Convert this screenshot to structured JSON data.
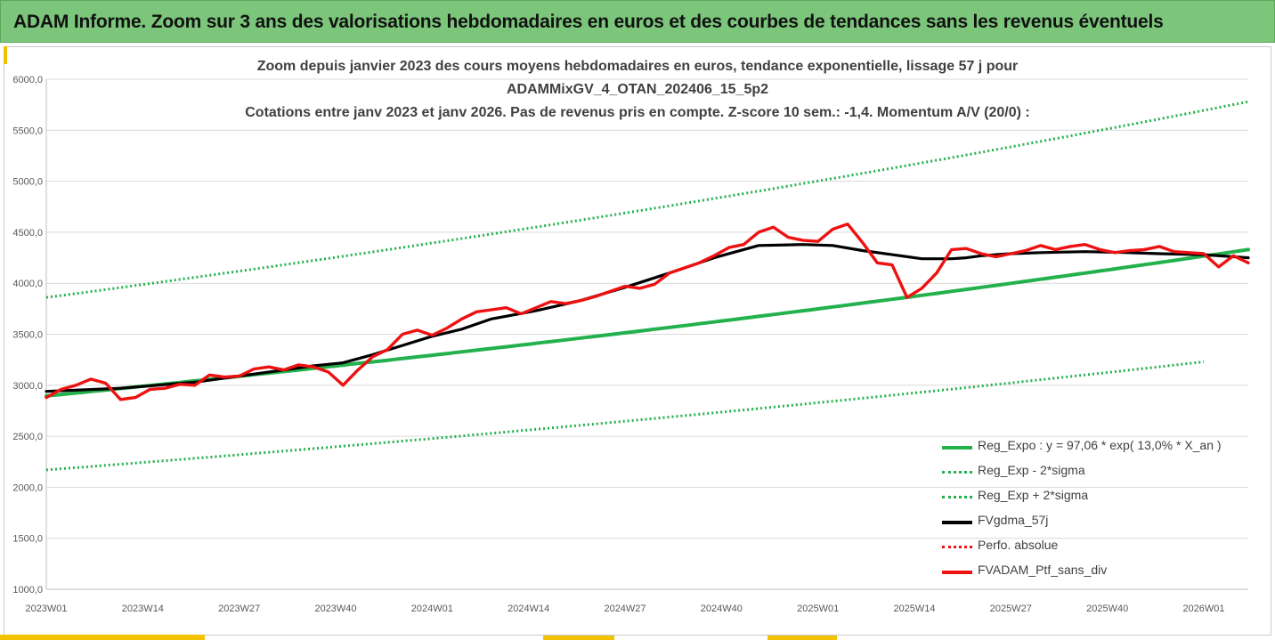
{
  "banner": {
    "title": "ADAM Informe. Zoom sur 3 ans des valorisations hebdomadaires en euros et des courbes de tendances sans les revenus éventuels"
  },
  "colors": {
    "banner": "#7bc67b",
    "accent": "#f2c200",
    "trend": "#22b14c",
    "gdma": "#000000",
    "ptf": "#ee1111",
    "perfo": "#ee1111"
  },
  "chart_data": {
    "type": "line",
    "title": [
      "Zoom depuis janvier 2023 des cours moyens hebdomadaires  en euros, tendance exponentielle, lissage 57 j pour",
      "ADAMMixGV_4_OTAN_202406_15_5p2",
      "Cotations entre janv 2023 et janv 2026. Pas de revenus pris en compte. Z-score 10 sem.: -1,4. Momentum A/V (20/0) :"
    ],
    "xlabel": "",
    "ylabel": "",
    "ylim": [
      1000,
      6000
    ],
    "y_ticks": [
      "1000,0",
      "1500,0",
      "2000,0",
      "2500,0",
      "3000,0",
      "3500,0",
      "4000,0",
      "4500,0",
      "5000,0",
      "5500,0",
      "6000,0"
    ],
    "x_tick_labels": [
      "2023W01",
      "2023W14",
      "2023W27",
      "2023W40",
      "2024W01",
      "2024W14",
      "2024W27",
      "2024W40",
      "2025W01",
      "2025W14",
      "2025W27",
      "2025W40",
      "2026W01"
    ],
    "x_range_weeks": [
      0,
      162
    ],
    "series": [
      {
        "name": "Reg_Expo : y = 97,06 * exp( 13,0% *  X_an )",
        "style": "solid-green",
        "x": [
          0,
          162
        ],
        "values": [
          2895,
          4330
        ],
        "curve": "exponential"
      },
      {
        "name": "Reg_Exp - 2*sigma",
        "style": "dotted-green",
        "x": [
          0,
          156
        ],
        "values": [
          2170,
          3230
        ],
        "curve": "exponential"
      },
      {
        "name": "Reg_Exp + 2*sigma",
        "style": "dotted-green",
        "x": [
          0,
          162
        ],
        "values": [
          3860,
          5780
        ],
        "curve": "exponential"
      },
      {
        "name": "FVgdma_57j",
        "style": "solid-black",
        "x": [
          0,
          10,
          20,
          30,
          36,
          40,
          44,
          48,
          52,
          56,
          60,
          66,
          72,
          78,
          84,
          90,
          96,
          102,
          106,
          110,
          114,
          118,
          122,
          124,
          126,
          128,
          130,
          134,
          140,
          146,
          150,
          156,
          162
        ],
        "values": [
          2940,
          2970,
          3030,
          3130,
          3190,
          3220,
          3300,
          3390,
          3480,
          3550,
          3650,
          3730,
          3830,
          3960,
          4100,
          4250,
          4370,
          4380,
          4370,
          4320,
          4280,
          4240,
          4240,
          4250,
          4270,
          4280,
          4290,
          4300,
          4310,
          4300,
          4290,
          4280,
          4250
        ]
      },
      {
        "name": "Perfo. absolue",
        "style": "dotted-red",
        "x": [],
        "values": []
      },
      {
        "name": "FVADAM_Ptf_sans_div",
        "style": "solid-red",
        "x": [
          0,
          2,
          4,
          6,
          8,
          10,
          12,
          14,
          16,
          18,
          20,
          22,
          24,
          26,
          28,
          30,
          32,
          34,
          36,
          38,
          40,
          42,
          44,
          46,
          48,
          50,
          52,
          54,
          56,
          58,
          60,
          62,
          64,
          66,
          68,
          70,
          72,
          74,
          76,
          78,
          80,
          82,
          84,
          86,
          88,
          90,
          92,
          94,
          96,
          98,
          100,
          102,
          104,
          106,
          108,
          110,
          112,
          114,
          116,
          118,
          120,
          122,
          124,
          126,
          128,
          130,
          132,
          134,
          136,
          138,
          140,
          142,
          144,
          146,
          148,
          150,
          152,
          154,
          156,
          158,
          160,
          162
        ],
        "values": [
          2880,
          2960,
          3000,
          3060,
          3020,
          2860,
          2880,
          2960,
          2970,
          3010,
          3000,
          3100,
          3080,
          3090,
          3160,
          3180,
          3150,
          3200,
          3180,
          3130,
          3000,
          3150,
          3280,
          3350,
          3500,
          3540,
          3490,
          3560,
          3650,
          3720,
          3740,
          3760,
          3700,
          3760,
          3820,
          3800,
          3830,
          3870,
          3920,
          3970,
          3950,
          3990,
          4100,
          4150,
          4200,
          4270,
          4350,
          4380,
          4500,
          4550,
          4450,
          4420,
          4410,
          4530,
          4580,
          4400,
          4200,
          4180,
          3860,
          3950,
          4100,
          4330,
          4340,
          4290,
          4260,
          4290,
          4320,
          4370,
          4330,
          4360,
          4380,
          4330,
          4300,
          4320,
          4330,
          4360,
          4310,
          4300,
          4290,
          4160,
          4270,
          4200
        ]
      }
    ],
    "legend_position": "bottom-right"
  }
}
